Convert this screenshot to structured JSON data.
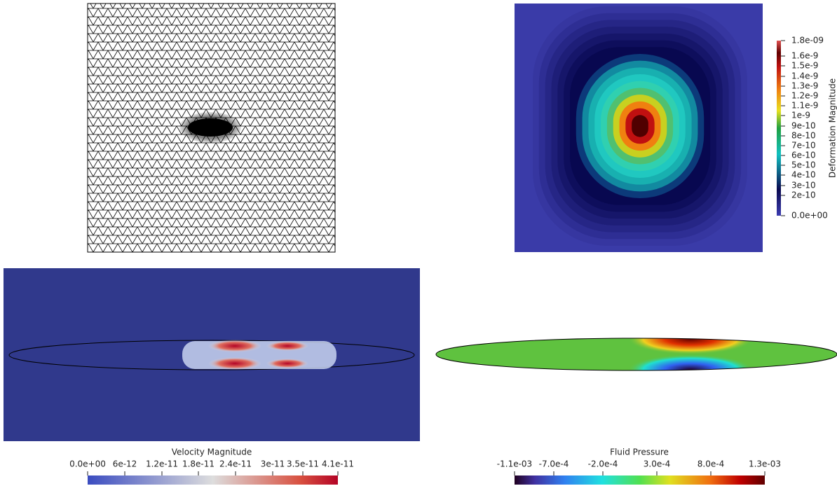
{
  "deformation": {
    "title": "Deformation Magnitude",
    "ticks": [
      "1.8e-09",
      "1.6e-9",
      "1.5e-9",
      "1.4e-9",
      "1.3e-9",
      "1.2e-9",
      "1.1e-9",
      "1e-9",
      "9e-10",
      "8e-10",
      "7e-10",
      "6e-10",
      "5e-10",
      "4e-10",
      "3e-10",
      "2e-10",
      "0.0e+00"
    ]
  },
  "velocity": {
    "title": "Velocity Magnitude",
    "ticks": [
      "0.0e+00",
      "6e-12",
      "1.2e-11",
      "1.8e-11",
      "2.4e-11",
      "3e-11",
      "3.5e-11",
      "4.1e-11"
    ]
  },
  "pressure": {
    "title": "Fluid Pressure",
    "ticks": [
      "-1.1e-03",
      "-7.0e-4",
      "-2.0e-4",
      "3.0e-4",
      "8.0e-4",
      "1.3e-03"
    ]
  }
}
